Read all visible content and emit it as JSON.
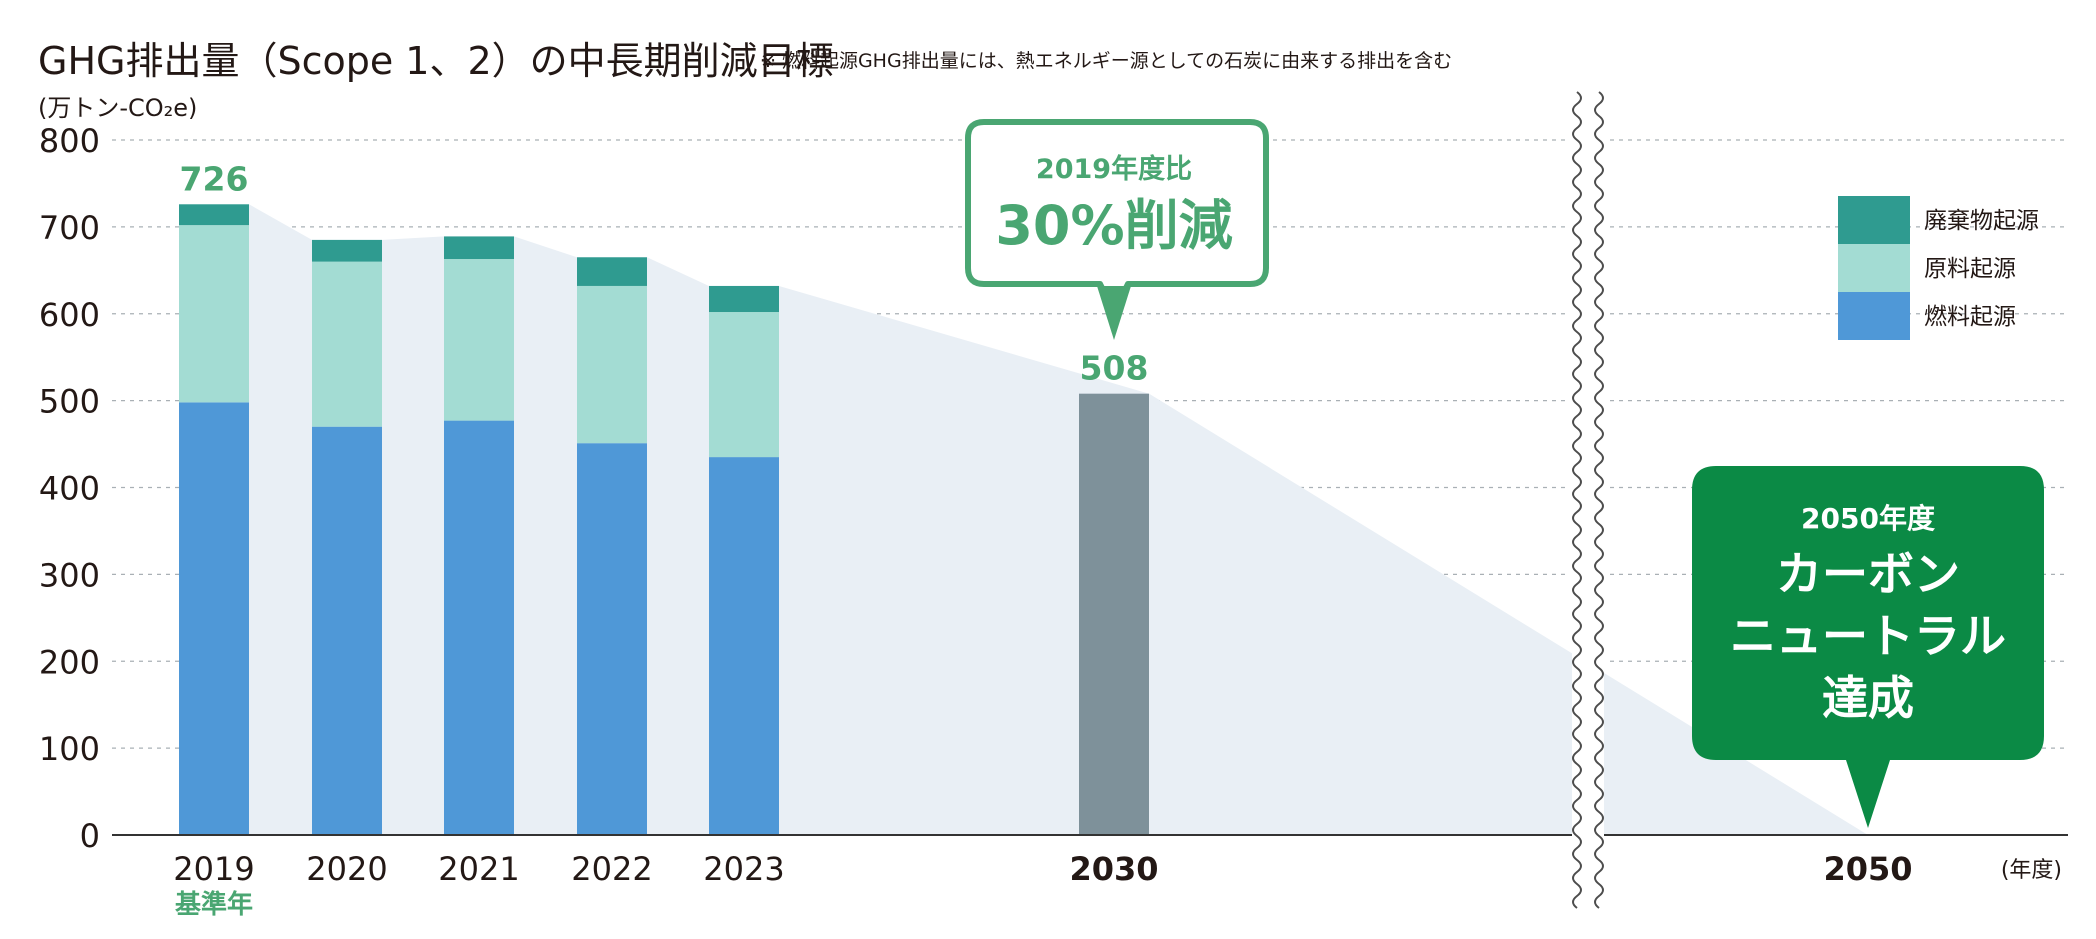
{
  "title": "GHG排出量（Scope 1、2）の中長期削減目標",
  "note": "※ 燃料起源GHG排出量には、熱エネルギー源としての石炭に由来する排出を含む",
  "unit_label": "(万トン-CO₂e)",
  "x_unit_label": "(年度)",
  "base_year_label": "基準年",
  "callout_2030": {
    "line1": "2019年度比",
    "line2": "30%削減"
  },
  "callout_2050": {
    "line1": "2050年度",
    "line2": "カーボン",
    "line3": "ニュートラル",
    "line4": "達成"
  },
  "colors": {
    "fuel": "#4f98d7",
    "material": "#a3dcd3",
    "waste": "#2f9b90",
    "target": "#7e919a",
    "green_text": "#4aa672",
    "green_fill": "#0b8a45",
    "band": "#e9eff5"
  },
  "chart_data": {
    "type": "bar",
    "stacked": true,
    "categories": [
      "2019",
      "2020",
      "2021",
      "2022",
      "2023",
      "2030",
      "2050"
    ],
    "series": [
      {
        "name": "燃料起源",
        "values": [
          498,
          470,
          477,
          451,
          435,
          null,
          null
        ]
      },
      {
        "name": "原料起源",
        "values": [
          204,
          190,
          186,
          181,
          167,
          null,
          null
        ]
      },
      {
        "name": "廃棄物起源",
        "values": [
          24,
          25,
          26,
          33,
          30,
          null,
          null
        ]
      }
    ],
    "target": {
      "category": "2030",
      "value": 508
    },
    "data_labels": [
      {
        "category": "2019",
        "value": 726
      },
      {
        "category": "2030",
        "value": 508
      }
    ],
    "legend": [
      "廃棄物起源",
      "原料起源",
      "燃料起源"
    ],
    "legend_position": "top-right",
    "ylim": [
      0,
      800
    ],
    "yticks": [
      0,
      100,
      200,
      300,
      400,
      500,
      600,
      700,
      800
    ],
    "grid": true,
    "axis_break": "between 2030 and 2050"
  }
}
